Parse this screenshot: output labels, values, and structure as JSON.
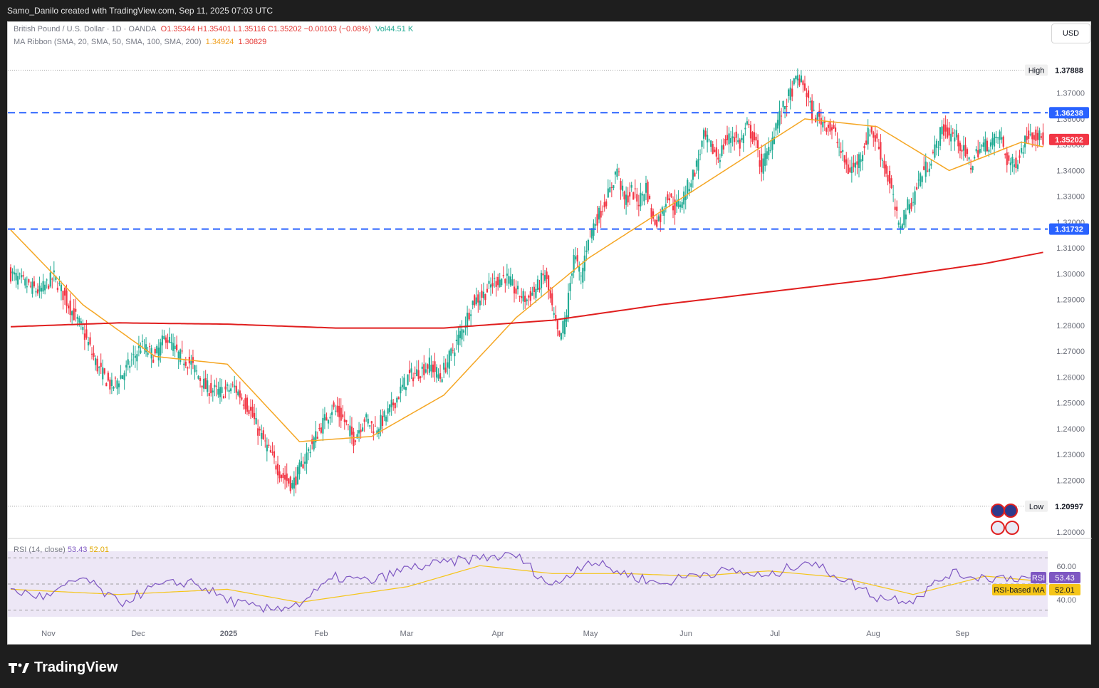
{
  "header": {
    "title": "Samo_Danilo created with TradingView.com, Sep 11, 2025 07:03 UTC"
  },
  "legend": {
    "symbol": "British Pound / U.S. Dollar · 1D · OANDA",
    "ohlc": "O1.35344  H1.35401  L1.35116  C1.35202  −0.00103 (−0.08%)",
    "volume": "Vol44.51 K",
    "ma_label": "MA Ribbon (SMA, 20, SMA, 50, SMA, 100, SMA, 200)",
    "ma_value_1": "1.34924",
    "ma_value_2": "1.30829"
  },
  "currency_button": "USD",
  "price_labels": {
    "high_text": "High",
    "high_value": "1.37888",
    "low_text": "Low",
    "low_value": "1.20997",
    "resistance": "1.36238",
    "support": "1.31732",
    "last": "1.35202"
  },
  "rsi": {
    "label": "RSI (14, close)",
    "value": "53.43",
    "ma_value": "52.01",
    "tag_rsi": "RSI",
    "tag_ma": "RSI-based MA",
    "tick_60": "60.00",
    "tick_40": "40.00"
  },
  "footer": {
    "brand": "TradingView"
  },
  "colors": {
    "bull": "#22ab94",
    "bear": "#f23645",
    "sma20": "#f5a623",
    "sma200": "#e01e1e",
    "level": "#2962ff",
    "rsi": "#7e57c2",
    "rsi_ma": "#f5c518",
    "rsi_band": "#ede7f6"
  },
  "chart_data": {
    "type": "candlestick",
    "x_ticks": [
      "Nov",
      "Dec",
      "2025",
      "Feb",
      "Mar",
      "Apr",
      "May",
      "Jun",
      "Jul",
      "Aug",
      "Sep"
    ],
    "y_ticks": [
      "1.37000",
      "1.36000",
      "1.35000",
      "1.34000",
      "1.33000",
      "1.32000",
      "1.31000",
      "1.30000",
      "1.29000",
      "1.28000",
      "1.27000",
      "1.26000",
      "1.25000",
      "1.24000",
      "1.23000",
      "1.22000",
      "1.20000"
    ],
    "ylim": [
      1.1975,
      1.3975
    ],
    "close_path": [
      [
        0,
        1.3
      ],
      [
        8,
        1.296
      ],
      [
        16,
        1.293
      ],
      [
        24,
        1.299
      ],
      [
        32,
        1.288
      ],
      [
        40,
        1.278
      ],
      [
        48,
        1.264
      ],
      [
        56,
        1.256
      ],
      [
        64,
        1.263
      ],
      [
        72,
        1.272
      ],
      [
        80,
        1.268
      ],
      [
        86,
        1.276
      ],
      [
        92,
        1.269
      ],
      [
        100,
        1.265
      ],
      [
        108,
        1.256
      ],
      [
        116,
        1.254
      ],
      [
        124,
        1.256
      ],
      [
        132,
        1.248
      ],
      [
        138,
        1.238
      ],
      [
        144,
        1.23
      ],
      [
        150,
        1.222
      ],
      [
        156,
        1.218
      ],
      [
        160,
        1.224
      ],
      [
        166,
        1.233
      ],
      [
        172,
        1.241
      ],
      [
        178,
        1.248
      ],
      [
        184,
        1.244
      ],
      [
        190,
        1.236
      ],
      [
        196,
        1.244
      ],
      [
        202,
        1.24
      ],
      [
        208,
        1.245
      ],
      [
        214,
        1.252
      ],
      [
        220,
        1.26
      ],
      [
        226,
        1.262
      ],
      [
        232,
        1.265
      ],
      [
        238,
        1.26
      ],
      [
        244,
        1.269
      ],
      [
        250,
        1.278
      ],
      [
        256,
        1.289
      ],
      [
        262,
        1.292
      ],
      [
        268,
        1.297
      ],
      [
        274,
        1.299
      ],
      [
        280,
        1.293
      ],
      [
        286,
        1.29
      ],
      [
        292,
        1.295
      ],
      [
        296,
        1.3
      ],
      [
        300,
        1.286
      ],
      [
        304,
        1.274
      ],
      [
        308,
        1.285
      ],
      [
        312,
        1.308
      ],
      [
        316,
        1.298
      ],
      [
        320,
        1.315
      ],
      [
        326,
        1.323
      ],
      [
        332,
        1.332
      ],
      [
        336,
        1.341
      ],
      [
        340,
        1.328
      ],
      [
        344,
        1.332
      ],
      [
        348,
        1.328
      ],
      [
        352,
        1.334
      ],
      [
        356,
        1.32
      ],
      [
        360,
        1.322
      ],
      [
        364,
        1.331
      ],
      [
        368,
        1.325
      ],
      [
        372,
        1.329
      ],
      [
        376,
        1.335
      ],
      [
        380,
        1.342
      ],
      [
        384,
        1.353
      ],
      [
        388,
        1.349
      ],
      [
        392,
        1.345
      ],
      [
        396,
        1.351
      ],
      [
        400,
        1.354
      ],
      [
        404,
        1.35
      ],
      [
        408,
        1.357
      ],
      [
        412,
        1.352
      ],
      [
        416,
        1.341
      ],
      [
        420,
        1.348
      ],
      [
        424,
        1.358
      ],
      [
        428,
        1.364
      ],
      [
        432,
        1.37
      ],
      [
        436,
        1.376
      ],
      [
        440,
        1.372
      ],
      [
        444,
        1.362
      ],
      [
        448,
        1.36
      ],
      [
        452,
        1.358
      ],
      [
        456,
        1.355
      ],
      [
        460,
        1.347
      ],
      [
        464,
        1.34
      ],
      [
        468,
        1.342
      ],
      [
        472,
        1.348
      ],
      [
        476,
        1.356
      ],
      [
        480,
        1.351
      ],
      [
        484,
        1.342
      ],
      [
        488,
        1.332
      ],
      [
        492,
        1.318
      ],
      [
        496,
        1.325
      ],
      [
        500,
        1.329
      ],
      [
        504,
        1.338
      ],
      [
        508,
        1.342
      ],
      [
        512,
        1.348
      ],
      [
        516,
        1.356
      ],
      [
        520,
        1.354
      ],
      [
        524,
        1.353
      ],
      [
        528,
        1.347
      ],
      [
        532,
        1.342
      ],
      [
        536,
        1.348
      ],
      [
        540,
        1.35
      ],
      [
        544,
        1.351
      ],
      [
        548,
        1.354
      ],
      [
        552,
        1.344
      ],
      [
        556,
        1.342
      ],
      [
        560,
        1.348
      ],
      [
        564,
        1.355
      ],
      [
        568,
        1.354
      ],
      [
        572,
        1.352
      ]
    ],
    "series": [
      {
        "name": "SMA 20",
        "x": [
          0,
          40,
          80,
          120,
          160,
          200,
          240,
          280,
          320,
          360,
          400,
          440,
          480,
          520,
          560,
          572
        ],
        "values": [
          1.317,
          1.288,
          1.268,
          1.265,
          1.235,
          1.237,
          1.253,
          1.283,
          1.306,
          1.324,
          1.342,
          1.36,
          1.357,
          1.34,
          1.351,
          1.3492
        ]
      },
      {
        "name": "SMA 200",
        "x": [
          0,
          60,
          120,
          180,
          240,
          300,
          360,
          420,
          480,
          540,
          572
        ],
        "values": [
          1.2795,
          1.281,
          1.2805,
          1.279,
          1.279,
          1.282,
          1.288,
          1.293,
          1.298,
          1.304,
          1.3083
        ]
      }
    ],
    "levels": [
      1.36238,
      1.31732
    ],
    "high": 1.37888,
    "low": 1.20997,
    "last": 1.35202,
    "rsi_path": [
      [
        0,
        45
      ],
      [
        20,
        40
      ],
      [
        40,
        55
      ],
      [
        60,
        35
      ],
      [
        80,
        48
      ],
      [
        100,
        52
      ],
      [
        120,
        38
      ],
      [
        140,
        30
      ],
      [
        160,
        35
      ],
      [
        180,
        55
      ],
      [
        200,
        52
      ],
      [
        220,
        62
      ],
      [
        240,
        66
      ],
      [
        260,
        70
      ],
      [
        280,
        72
      ],
      [
        300,
        48
      ],
      [
        320,
        68
      ],
      [
        340,
        58
      ],
      [
        360,
        50
      ],
      [
        380,
        58
      ],
      [
        400,
        60
      ],
      [
        420,
        55
      ],
      [
        440,
        68
      ],
      [
        460,
        55
      ],
      [
        480,
        40
      ],
      [
        500,
        38
      ],
      [
        520,
        58
      ],
      [
        540,
        55
      ],
      [
        560,
        55
      ],
      [
        572,
        53
      ]
    ],
    "rsi_ma_path": [
      [
        0,
        46
      ],
      [
        60,
        42
      ],
      [
        120,
        46
      ],
      [
        160,
        36
      ],
      [
        220,
        48
      ],
      [
        260,
        64
      ],
      [
        300,
        58
      ],
      [
        340,
        58
      ],
      [
        380,
        56
      ],
      [
        420,
        60
      ],
      [
        460,
        55
      ],
      [
        500,
        42
      ],
      [
        540,
        56
      ],
      [
        572,
        52
      ]
    ],
    "rsi_ylim": [
      25,
      75
    ]
  }
}
